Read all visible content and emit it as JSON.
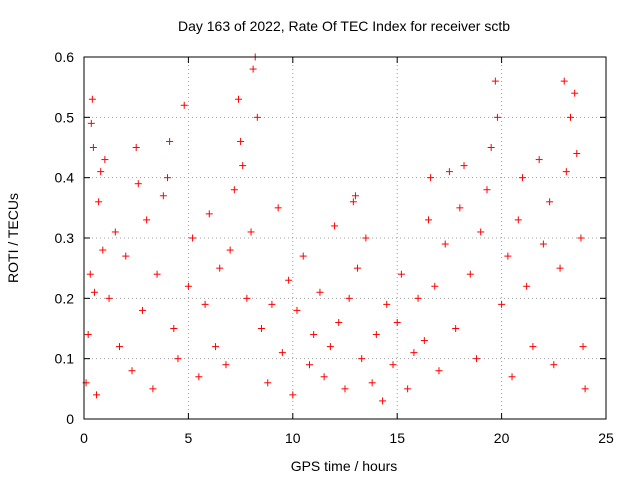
{
  "chart_data": {
    "type": "scatter",
    "title": "Day 163 of 2022, Rate Of TEC Index for receiver sctb",
    "xlabel": "GPS time / hours",
    "ylabel": "ROTI / TECUs",
    "xlim": [
      0,
      25
    ],
    "ylim": [
      0,
      0.6
    ],
    "x_ticks": [
      0,
      5,
      10,
      15,
      20,
      25
    ],
    "x_tick_labels": [
      "0",
      "5",
      "10",
      "15",
      "20",
      "25"
    ],
    "y_ticks": [
      0,
      0.1,
      0.2,
      0.3,
      0.4,
      0.5,
      0.6
    ],
    "y_tick_labels": [
      "0",
      "0.1",
      "0.2",
      "0.3",
      "0.4",
      "0.5",
      "0.6"
    ],
    "grid": true,
    "legend": "none",
    "marker": "+",
    "colors": {
      "points": "#ff0000",
      "grid": "#a0a0a0",
      "axes": "#000000"
    },
    "series": [
      {
        "name": "ROTI",
        "points": [
          [
            0.1,
            0.06
          ],
          [
            0.2,
            0.14
          ],
          [
            0.3,
            0.24
          ],
          [
            0.35,
            0.49
          ],
          [
            0.4,
            0.53
          ],
          [
            0.45,
            0.45
          ],
          [
            0.5,
            0.21
          ],
          [
            0.6,
            0.04
          ],
          [
            0.7,
            0.36
          ],
          [
            0.8,
            0.41
          ],
          [
            0.9,
            0.28
          ],
          [
            1.0,
            0.43
          ],
          [
            1.2,
            0.2
          ],
          [
            1.5,
            0.31
          ],
          [
            1.7,
            0.12
          ],
          [
            2.0,
            0.27
          ],
          [
            2.3,
            0.08
          ],
          [
            2.5,
            0.45
          ],
          [
            2.6,
            0.39
          ],
          [
            2.8,
            0.18
          ],
          [
            3.0,
            0.33
          ],
          [
            3.3,
            0.05
          ],
          [
            3.5,
            0.24
          ],
          [
            3.8,
            0.37
          ],
          [
            4.0,
            0.4
          ],
          [
            4.1,
            0.46
          ],
          [
            4.3,
            0.15
          ],
          [
            4.5,
            0.1
          ],
          [
            4.8,
            0.52
          ],
          [
            5.0,
            0.22
          ],
          [
            5.2,
            0.3
          ],
          [
            5.5,
            0.07
          ],
          [
            5.8,
            0.19
          ],
          [
            6.0,
            0.34
          ],
          [
            6.3,
            0.12
          ],
          [
            6.5,
            0.25
          ],
          [
            6.8,
            0.09
          ],
          [
            7.0,
            0.28
          ],
          [
            7.2,
            0.38
          ],
          [
            7.4,
            0.53
          ],
          [
            7.5,
            0.46
          ],
          [
            7.6,
            0.42
          ],
          [
            7.8,
            0.2
          ],
          [
            8.0,
            0.31
          ],
          [
            8.1,
            0.58
          ],
          [
            8.2,
            0.6
          ],
          [
            8.3,
            0.5
          ],
          [
            8.5,
            0.15
          ],
          [
            8.8,
            0.06
          ],
          [
            9.0,
            0.19
          ],
          [
            9.3,
            0.35
          ],
          [
            9.5,
            0.11
          ],
          [
            9.8,
            0.23
          ],
          [
            10.0,
            0.04
          ],
          [
            10.2,
            0.18
          ],
          [
            10.5,
            0.27
          ],
          [
            10.8,
            0.09
          ],
          [
            11.0,
            0.14
          ],
          [
            11.3,
            0.21
          ],
          [
            11.5,
            0.07
          ],
          [
            11.8,
            0.12
          ],
          [
            12.0,
            0.32
          ],
          [
            12.2,
            0.16
          ],
          [
            12.5,
            0.05
          ],
          [
            12.7,
            0.2
          ],
          [
            12.9,
            0.36
          ],
          [
            13.0,
            0.37
          ],
          [
            13.1,
            0.25
          ],
          [
            13.3,
            0.1
          ],
          [
            13.5,
            0.3
          ],
          [
            13.8,
            0.06
          ],
          [
            14.0,
            0.14
          ],
          [
            14.3,
            0.03
          ],
          [
            14.5,
            0.19
          ],
          [
            14.8,
            0.09
          ],
          [
            15.0,
            0.16
          ],
          [
            15.2,
            0.24
          ],
          [
            15.5,
            0.05
          ],
          [
            15.8,
            0.11
          ],
          [
            16.0,
            0.2
          ],
          [
            16.3,
            0.13
          ],
          [
            16.5,
            0.33
          ],
          [
            16.6,
            0.4
          ],
          [
            16.8,
            0.22
          ],
          [
            17.0,
            0.08
          ],
          [
            17.3,
            0.29
          ],
          [
            17.5,
            0.41
          ],
          [
            17.8,
            0.15
          ],
          [
            18.0,
            0.35
          ],
          [
            18.2,
            0.42
          ],
          [
            18.5,
            0.24
          ],
          [
            18.8,
            0.1
          ],
          [
            19.0,
            0.31
          ],
          [
            19.3,
            0.38
          ],
          [
            19.5,
            0.45
          ],
          [
            19.7,
            0.56
          ],
          [
            19.8,
            0.5
          ],
          [
            20.0,
            0.19
          ],
          [
            20.3,
            0.27
          ],
          [
            20.5,
            0.07
          ],
          [
            20.8,
            0.33
          ],
          [
            21.0,
            0.4
          ],
          [
            21.2,
            0.22
          ],
          [
            21.5,
            0.12
          ],
          [
            21.8,
            0.43
          ],
          [
            22.0,
            0.29
          ],
          [
            22.3,
            0.36
          ],
          [
            22.5,
            0.09
          ],
          [
            22.8,
            0.25
          ],
          [
            23.0,
            0.56
          ],
          [
            23.1,
            0.41
          ],
          [
            23.3,
            0.5
          ],
          [
            23.5,
            0.54
          ],
          [
            23.6,
            0.44
          ],
          [
            23.8,
            0.3
          ],
          [
            23.9,
            0.12
          ],
          [
            24.0,
            0.05
          ]
        ]
      }
    ]
  }
}
